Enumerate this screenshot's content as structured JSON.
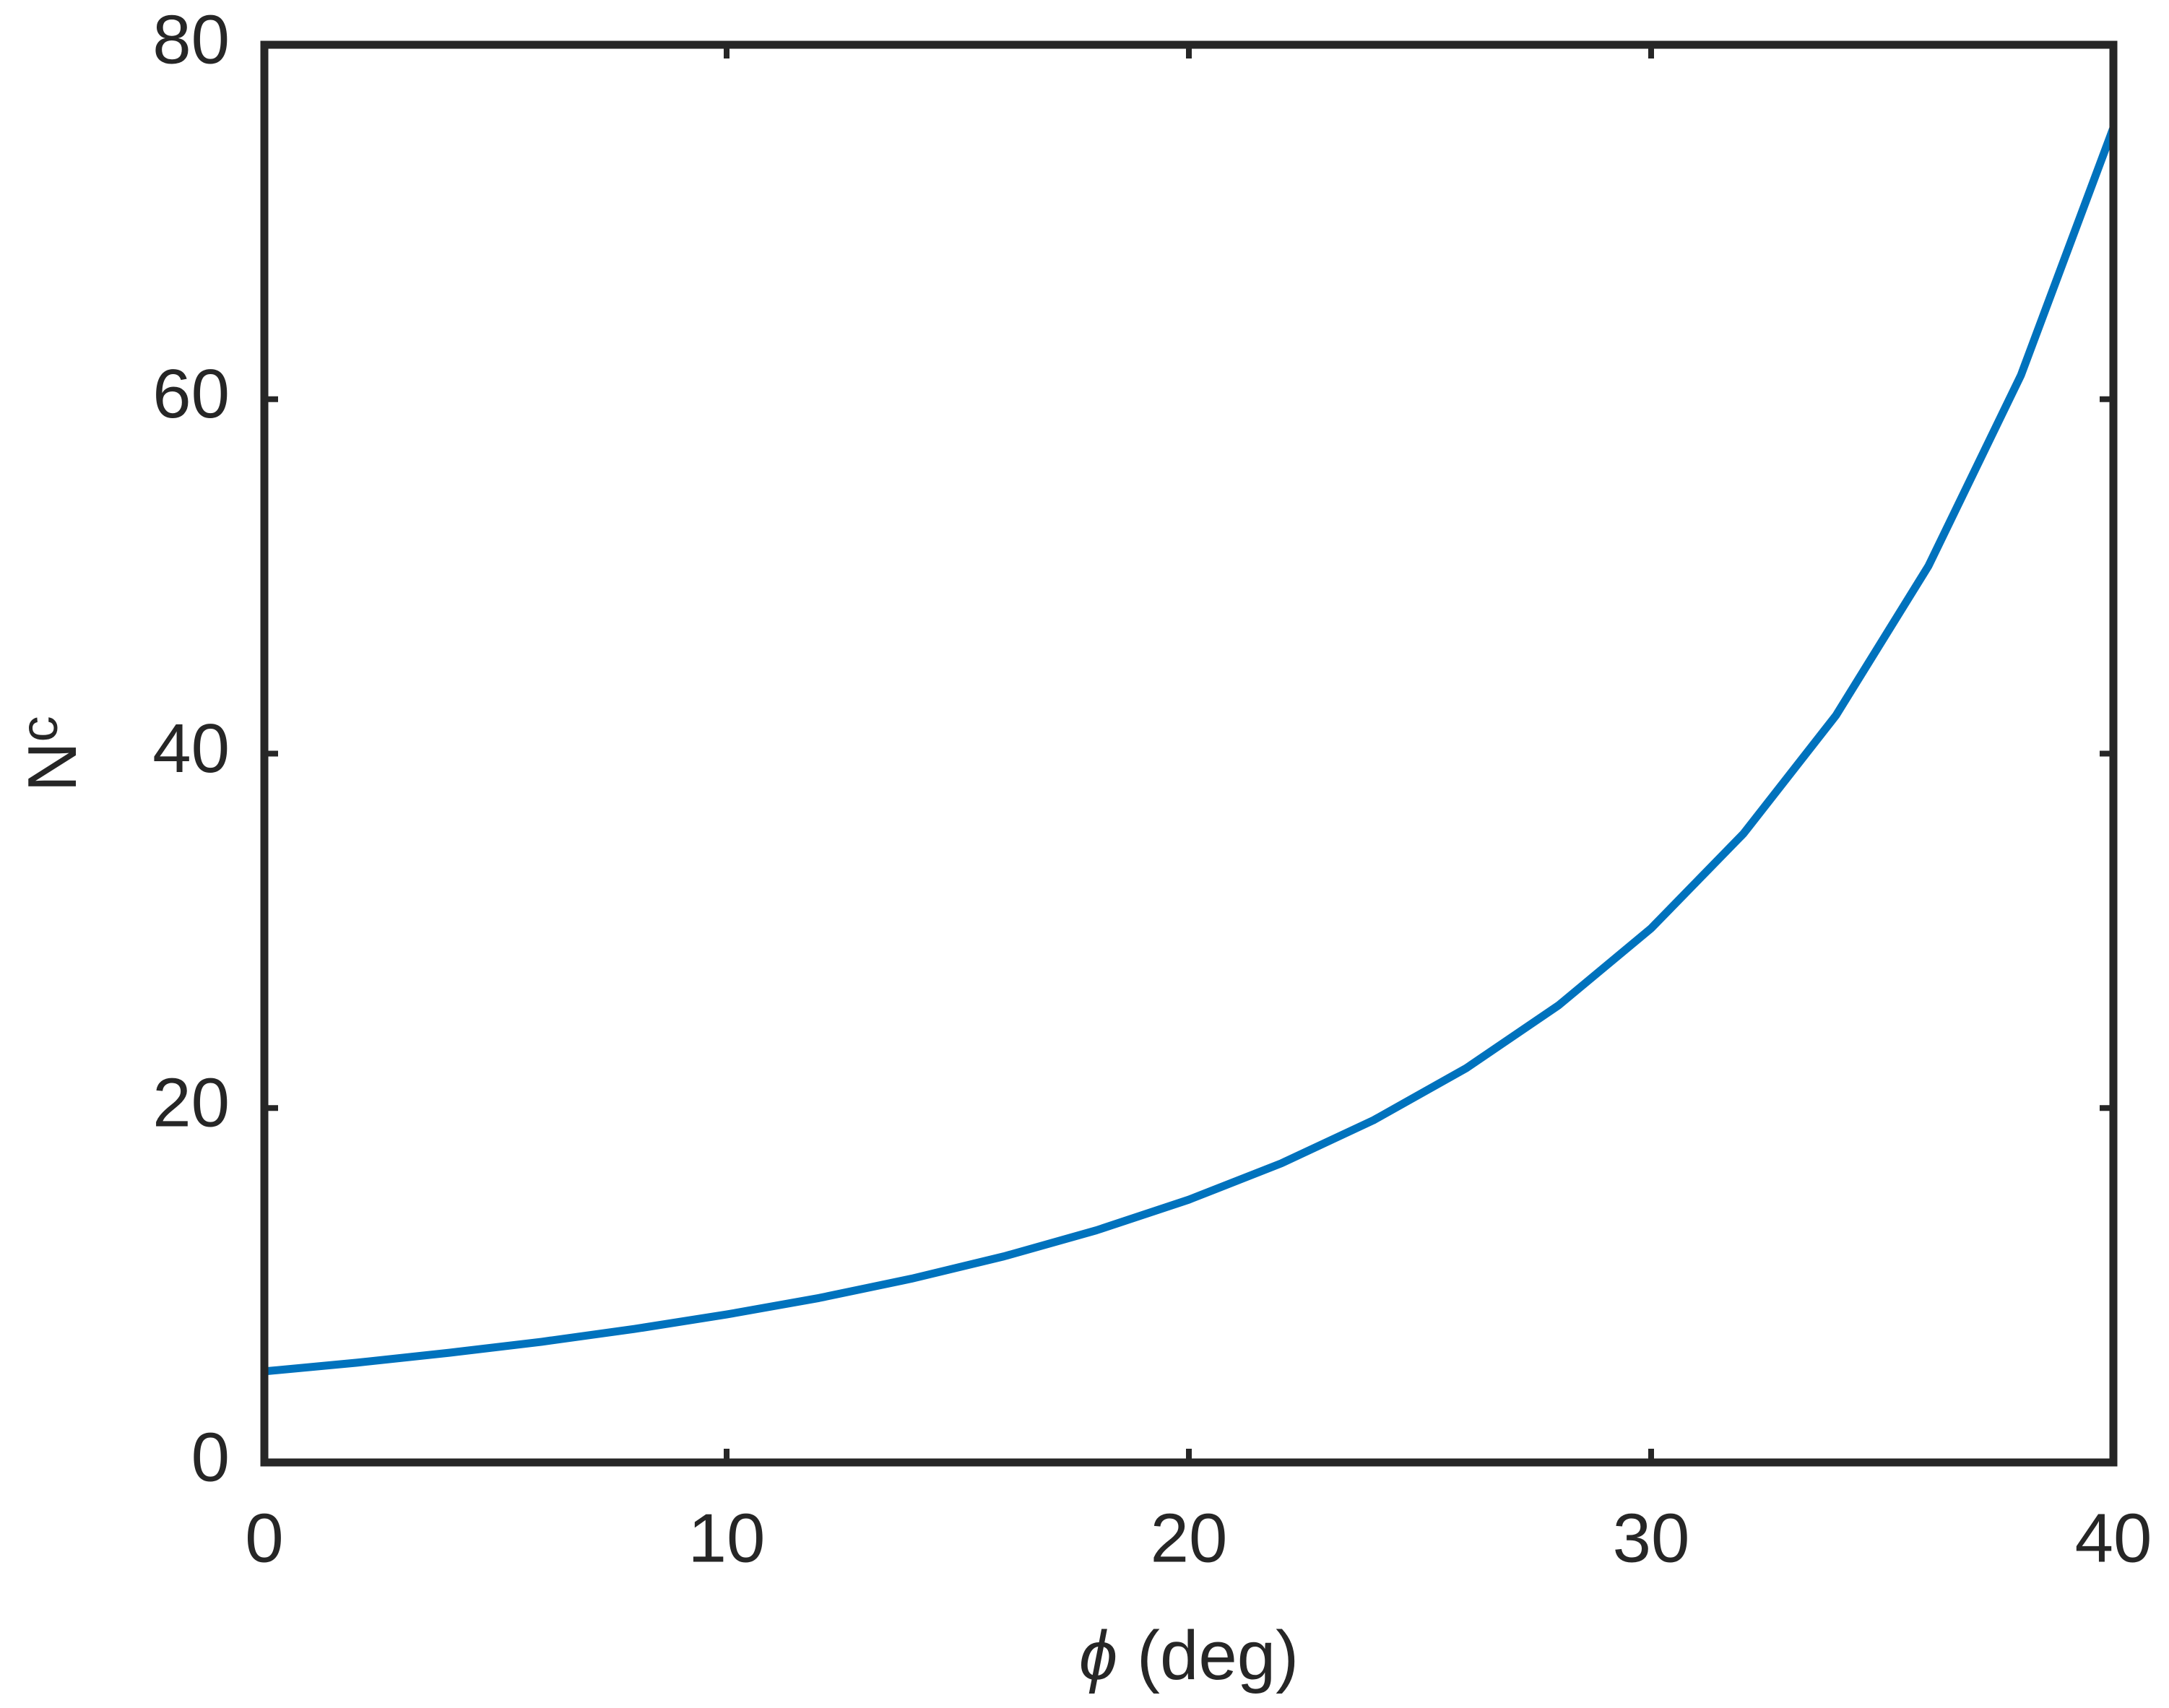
{
  "chart_data": {
    "type": "line",
    "xlabel": [
      "ϕ",
      " (deg)"
    ],
    "ylabel": [
      "N",
      "c"
    ],
    "x": [
      0,
      2,
      4,
      6,
      8,
      10,
      12,
      14,
      16,
      18,
      20,
      22,
      24,
      26,
      28,
      30,
      32,
      34,
      36,
      38,
      40
    ],
    "series": [
      {
        "color": "#0072bd",
        "values": [
          5.14,
          5.63,
          6.19,
          6.81,
          7.53,
          8.35,
          9.28,
          10.37,
          11.63,
          13.1,
          14.83,
          16.88,
          19.32,
          22.25,
          25.8,
          30.14,
          35.49,
          42.16,
          50.59,
          61.35,
          75.31
        ]
      }
    ],
    "xlim": [
      0,
      40
    ],
    "xticks": [
      0,
      10,
      20,
      30,
      40
    ],
    "ylim": [
      0,
      80
    ],
    "yticks": [
      0,
      20,
      40,
      60,
      80
    ],
    "grid": false
  }
}
